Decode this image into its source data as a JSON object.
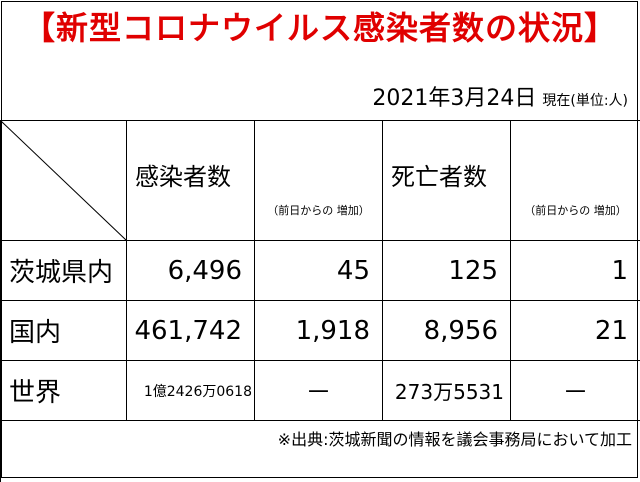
{
  "title": "【新型コロナウイルス感染者数の状況】",
  "date": "2021年3月24日",
  "as_of": "現在(単位:人)",
  "headers": {
    "infections": "感染者数",
    "infections_increase": "（前日からの 増加）",
    "deaths": "死亡者数",
    "deaths_increase": "（前日からの 増加）"
  },
  "rows": [
    {
      "label": "茨城県内",
      "infections": "6,496",
      "infections_increase": "45",
      "deaths": "125",
      "deaths_increase": "1"
    },
    {
      "label": "国内",
      "infections": "461,742",
      "infections_increase": "1,918",
      "deaths": "8,956",
      "deaths_increase": "21"
    },
    {
      "label": "世界",
      "infections": "1億2426万0618",
      "infections_increase": "－",
      "deaths": "273万5531",
      "deaths_increase": "－"
    }
  ],
  "source": "※出典:茨城新聞の情報を議会事務局において加工",
  "colors": {
    "title": "#e00000",
    "text": "#000000",
    "border": "#000000"
  }
}
